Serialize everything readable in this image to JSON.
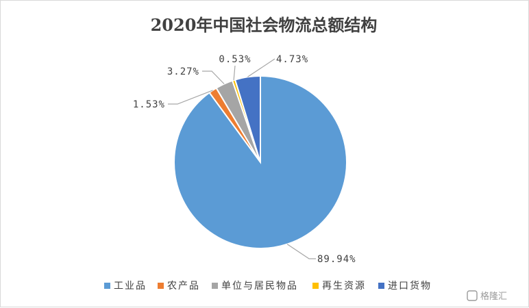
{
  "watermark": "格隆汇",
  "chart_data": {
    "type": "pie",
    "title": "2020年中国社会物流总额结构",
    "legend_position": "bottom",
    "categories": [
      "工业品",
      "农产品",
      "单位与居民物品",
      "再生资源",
      "进口货物"
    ],
    "values": [
      89.94,
      1.53,
      3.27,
      0.53,
      4.73
    ],
    "labels": [
      "89.94%",
      "1.53%",
      "3.27%",
      "0.53%",
      "4.73%"
    ],
    "colors": [
      "#5b9bd5",
      "#ed7d31",
      "#a5a5a5",
      "#ffc000",
      "#4472c4"
    ]
  }
}
